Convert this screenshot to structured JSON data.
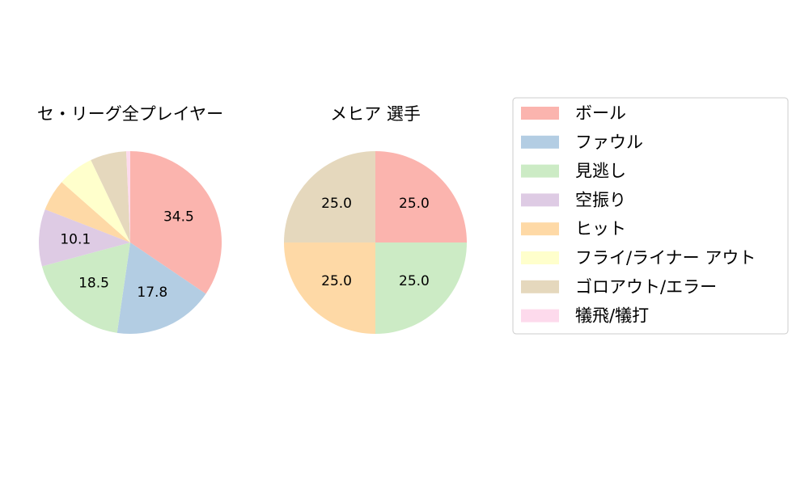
{
  "chart_data": [
    {
      "type": "pie",
      "title": "セ・リーグ全プレイヤー",
      "start_angle_deg": 90,
      "direction": "clockwise",
      "slices": [
        {
          "label": "ボール",
          "value": 34.5,
          "pct_text": "34.5",
          "color": "#fbb4ae"
        },
        {
          "label": "ファウル",
          "value": 17.8,
          "pct_text": "17.8",
          "color": "#b3cde3"
        },
        {
          "label": "見逃し",
          "value": 18.5,
          "pct_text": "18.5",
          "color": "#ccebc5"
        },
        {
          "label": "空振り",
          "value": 10.1,
          "pct_text": "10.1",
          "color": "#decbe4"
        },
        {
          "label": "ヒット",
          "value": 5.6,
          "pct_text": "",
          "color": "#fed9a6"
        },
        {
          "label": "フライ/ライナー アウト",
          "value": 6.4,
          "pct_text": "",
          "color": "#ffffcc"
        },
        {
          "label": "ゴロアウト/エラー",
          "value": 6.4,
          "pct_text": "",
          "color": "#e5d8bd"
        },
        {
          "label": "犠飛/犠打",
          "value": 0.7,
          "pct_text": "",
          "color": "#fddaec"
        }
      ]
    },
    {
      "type": "pie",
      "title": "メヒア  選手",
      "start_angle_deg": 90,
      "direction": "clockwise",
      "slices": [
        {
          "label": "ボール",
          "value": 25.0,
          "pct_text": "25.0",
          "color": "#fbb4ae"
        },
        {
          "label": "見逃し",
          "value": 25.0,
          "pct_text": "25.0",
          "color": "#ccebc5"
        },
        {
          "label": "ヒット",
          "value": 25.0,
          "pct_text": "25.0",
          "color": "#fed9a6"
        },
        {
          "label": "ゴロアウト/エラー",
          "value": 25.0,
          "pct_text": "25.0",
          "color": "#e5d8bd"
        }
      ]
    }
  ],
  "legend": {
    "position": "right",
    "items": [
      {
        "label": "ボール",
        "color": "#fbb4ae"
      },
      {
        "label": "ファウル",
        "color": "#b3cde3"
      },
      {
        "label": "見逃し",
        "color": "#ccebc5"
      },
      {
        "label": "空振り",
        "color": "#decbe4"
      },
      {
        "label": "ヒット",
        "color": "#fed9a6"
      },
      {
        "label": "フライ/ライナー アウト",
        "color": "#ffffcc"
      },
      {
        "label": "ゴロアウト/エラー",
        "color": "#e5d8bd"
      },
      {
        "label": "犠飛/犠打",
        "color": "#fddaec"
      }
    ]
  }
}
